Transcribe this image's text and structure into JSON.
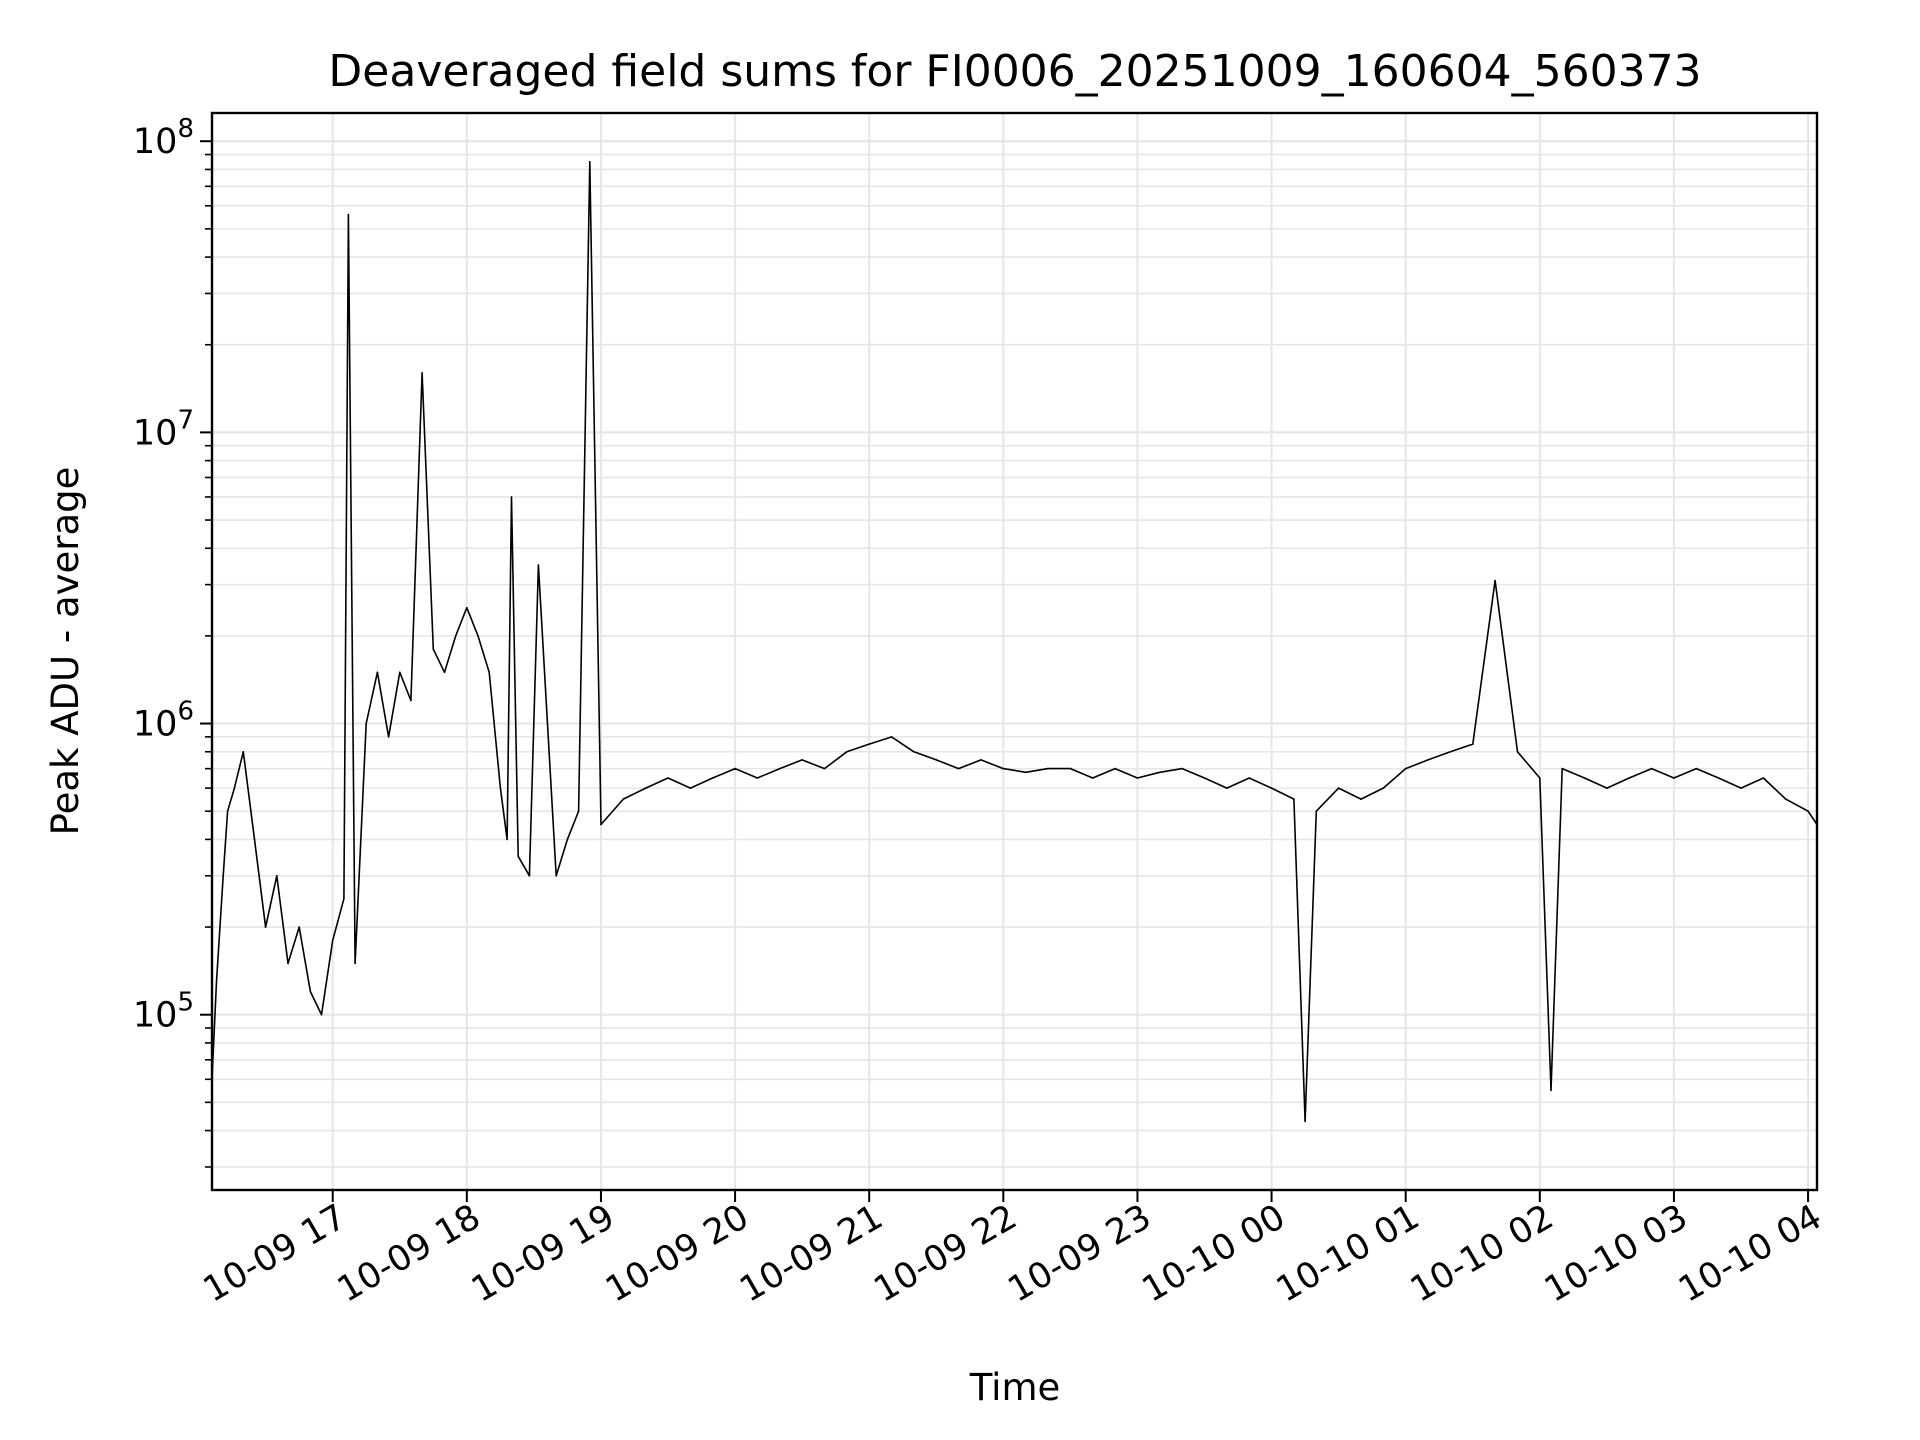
{
  "chart_data": {
    "type": "line",
    "title": "Deaveraged field sums for FI0006_20251009_160604_560373",
    "xlabel": "Time",
    "ylabel": "Peak ADU - average",
    "yscale": "log",
    "ylim": [
      25000,
      125000000
    ],
    "xlim": [
      "2025-10-09 16:06",
      "2025-10-10 04:04"
    ],
    "grid": true,
    "line_color": "#000000",
    "grid_color": "#e6e6e6",
    "x_ticks": [
      {
        "label": "10-09 17",
        "time": "2025-10-09 17:00"
      },
      {
        "label": "10-09 18",
        "time": "2025-10-09 18:00"
      },
      {
        "label": "10-09 19",
        "time": "2025-10-09 19:00"
      },
      {
        "label": "10-09 20",
        "time": "2025-10-09 20:00"
      },
      {
        "label": "10-09 21",
        "time": "2025-10-09 21:00"
      },
      {
        "label": "10-09 22",
        "time": "2025-10-09 22:00"
      },
      {
        "label": "10-09 23",
        "time": "2025-10-09 23:00"
      },
      {
        "label": "10-10 00",
        "time": "2025-10-10 00:00"
      },
      {
        "label": "10-10 01",
        "time": "2025-10-10 01:00"
      },
      {
        "label": "10-10 02",
        "time": "2025-10-10 02:00"
      },
      {
        "label": "10-10 03",
        "time": "2025-10-10 03:00"
      },
      {
        "label": "10-10 04",
        "time": "2025-10-10 04:00"
      }
    ],
    "y_ticks": [
      {
        "base": "10",
        "exp": "5",
        "value": 100000
      },
      {
        "base": "10",
        "exp": "6",
        "value": 1000000
      },
      {
        "base": "10",
        "exp": "7",
        "value": 10000000
      },
      {
        "base": "10",
        "exp": "8",
        "value": 100000000
      }
    ],
    "series": [
      {
        "x": [
          "2025-10-09 16:06",
          "2025-10-09 16:08",
          "2025-10-09 16:11",
          "2025-10-09 16:13",
          "2025-10-09 16:16",
          "2025-10-09 16:20",
          "2025-10-09 16:25",
          "2025-10-09 16:30",
          "2025-10-09 16:35",
          "2025-10-09 16:40",
          "2025-10-09 16:45",
          "2025-10-09 16:50",
          "2025-10-09 16:55",
          "2025-10-09 17:00",
          "2025-10-09 17:05",
          "2025-10-09 17:07",
          "2025-10-09 17:10",
          "2025-10-09 17:15",
          "2025-10-09 17:20",
          "2025-10-09 17:25",
          "2025-10-09 17:30",
          "2025-10-09 17:35",
          "2025-10-09 17:40",
          "2025-10-09 17:45",
          "2025-10-09 17:50",
          "2025-10-09 17:55",
          "2025-10-09 18:00",
          "2025-10-09 18:05",
          "2025-10-09 18:10",
          "2025-10-09 18:15",
          "2025-10-09 18:18",
          "2025-10-09 18:20",
          "2025-10-09 18:23",
          "2025-10-09 18:28",
          "2025-10-09 18:32",
          "2025-10-09 18:40",
          "2025-10-09 18:45",
          "2025-10-09 18:50",
          "2025-10-09 18:55",
          "2025-10-09 19:00",
          "2025-10-09 19:10",
          "2025-10-09 19:20",
          "2025-10-09 19:30",
          "2025-10-09 19:40",
          "2025-10-09 19:50",
          "2025-10-09 20:00",
          "2025-10-09 20:10",
          "2025-10-09 20:20",
          "2025-10-09 20:30",
          "2025-10-09 20:40",
          "2025-10-09 20:50",
          "2025-10-09 21:00",
          "2025-10-09 21:10",
          "2025-10-09 21:20",
          "2025-10-09 21:30",
          "2025-10-09 21:40",
          "2025-10-09 21:50",
          "2025-10-09 22:00",
          "2025-10-09 22:10",
          "2025-10-09 22:20",
          "2025-10-09 22:30",
          "2025-10-09 22:40",
          "2025-10-09 22:50",
          "2025-10-09 23:00",
          "2025-10-09 23:10",
          "2025-10-09 23:20",
          "2025-10-09 23:30",
          "2025-10-09 23:40",
          "2025-10-09 23:50",
          "2025-10-10 00:00",
          "2025-10-10 00:10",
          "2025-10-10 00:15",
          "2025-10-10 00:20",
          "2025-10-10 00:30",
          "2025-10-10 00:40",
          "2025-10-10 00:50",
          "2025-10-10 01:00",
          "2025-10-10 01:10",
          "2025-10-10 01:20",
          "2025-10-10 01:30",
          "2025-10-10 01:40",
          "2025-10-10 01:50",
          "2025-10-10 02:00",
          "2025-10-10 02:05",
          "2025-10-10 02:10",
          "2025-10-10 02:20",
          "2025-10-10 02:30",
          "2025-10-10 02:40",
          "2025-10-10 02:50",
          "2025-10-10 03:00",
          "2025-10-10 03:10",
          "2025-10-10 03:20",
          "2025-10-10 03:30",
          "2025-10-10 03:40",
          "2025-10-10 03:50",
          "2025-10-10 04:00",
          "2025-10-10 04:04"
        ],
        "y": [
          60000,
          130000,
          300000,
          500000,
          600000,
          800000,
          400000,
          200000,
          300000,
          150000,
          200000,
          120000,
          100000,
          180000,
          250000,
          56000000,
          150000,
          1000000,
          1500000,
          900000,
          1500000,
          1200000,
          16000000,
          1800000,
          1500000,
          2000000,
          2500000,
          2000000,
          1500000,
          600000,
          400000,
          6000000,
          350000,
          300000,
          3500000,
          300000,
          400000,
          500000,
          85000000,
          450000,
          550000,
          600000,
          650000,
          600000,
          650000,
          700000,
          650000,
          700000,
          750000,
          700000,
          800000,
          850000,
          900000,
          800000,
          750000,
          700000,
          750000,
          700000,
          680000,
          700000,
          700000,
          650000,
          700000,
          650000,
          680000,
          700000,
          650000,
          600000,
          650000,
          600000,
          550000,
          43000,
          500000,
          600000,
          550000,
          600000,
          700000,
          750000,
          800000,
          850000,
          3100000,
          800000,
          650000,
          55000,
          700000,
          650000,
          600000,
          650000,
          700000,
          650000,
          700000,
          650000,
          600000,
          650000,
          550000,
          500000,
          450000
        ]
      }
    ]
  }
}
